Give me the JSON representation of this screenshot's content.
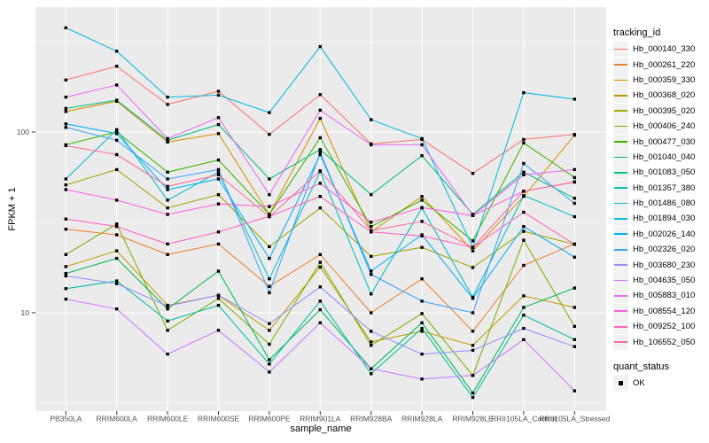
{
  "chart_data": {
    "type": "line",
    "title": "",
    "xlabel": "sample_name",
    "ylabel": "FPKM + 1",
    "y_scale": "log10",
    "y_major_ticks": [
      100,
      10
    ],
    "y_minor_gridlines": [
      316.2,
      31.62,
      3.162
    ],
    "ylim": [
      2.9,
      490
    ],
    "grid": true,
    "panel_background": "#EBEBEB",
    "gridline_color": "#FFFFFF",
    "tick_label_color": "#4D4D4D",
    "tick_mark_color": "#333333",
    "point_marker": "black-square",
    "point_color": "#000000",
    "legend_position": "right",
    "categories": [
      "PB350LA",
      "RRIM600LA",
      "RRIM600LE",
      "RRIM600SE",
      "RRIM600PE",
      "RRIM901LA",
      "RRIM928BA",
      "RRIM928LA",
      "RRIM928LE",
      "RRII105LA_Control",
      "RRII105LA_Stressed"
    ],
    "legend": {
      "title": "tracking_id"
    },
    "quant_legend": {
      "title": "quant_status",
      "items": [
        {
          "label": "OK",
          "marker": "black-square"
        }
      ]
    },
    "series": [
      {
        "name": "Hb_000140_330",
        "color": "#F8766D",
        "values": [
          194,
          231,
          142,
          168,
          97,
          161,
          86,
          91,
          59,
          91,
          97
        ]
      },
      {
        "name": "Hb_000261_220",
        "color": "#EA8331",
        "values": [
          29,
          27,
          21,
          24,
          14,
          21,
          10,
          15.4,
          7.9,
          18.3,
          24
        ]
      },
      {
        "name": "Hb_000359_330",
        "color": "#D89000",
        "values": [
          130,
          148,
          88,
          98,
          35,
          119,
          28,
          44,
          22,
          44,
          96
        ]
      },
      {
        "name": "Hb_000368_020",
        "color": "#C09B00",
        "values": [
          18,
          22,
          11,
          12.5,
          8,
          17.9,
          6.9,
          7.9,
          6.6,
          12.4,
          10.7
        ]
      },
      {
        "name": "Hb_000395_020",
        "color": "#A3A500",
        "values": [
          51,
          62,
          38,
          45,
          23.2,
          38,
          20.5,
          23,
          17.8,
          28.2,
          23.9
        ]
      },
      {
        "name": "Hb_000406_240",
        "color": "#7CAE00",
        "values": [
          21,
          31,
          8,
          12,
          6.7,
          19,
          6.6,
          9.9,
          4.5,
          25.2,
          8.4
        ]
      },
      {
        "name": "Hb_000477_030",
        "color": "#39B600",
        "values": [
          85,
          100,
          60,
          70,
          35,
          93,
          30,
          42,
          25,
          87,
          56
        ]
      },
      {
        "name": "Hb_001040_040",
        "color": "#00BB4E",
        "values": [
          16.5,
          20,
          10.5,
          17,
          5.5,
          10.4,
          4.9,
          8.8,
          3.6,
          10.7,
          13.7
        ]
      },
      {
        "name": "Hb_001083_050",
        "color": "#00BF7D",
        "values": [
          135,
          150,
          90,
          110,
          55,
          80,
          45,
          74,
          35,
          60,
          43
        ]
      },
      {
        "name": "Hb_001357_380",
        "color": "#00C1A3",
        "values": [
          13.6,
          15,
          9,
          11,
          5.2,
          11.6,
          4.6,
          8.2,
          3.4,
          9.7,
          7.1
        ]
      },
      {
        "name": "Hb_001486_080",
        "color": "#00BFC4",
        "values": [
          55,
          103,
          42,
          60,
          15.4,
          60.5,
          12.7,
          38,
          12.2,
          44.5,
          34
        ]
      },
      {
        "name": "Hb_001894_030",
        "color": "#00BAE0",
        "values": [
          377,
          280,
          156,
          160,
          128,
          297,
          117,
          92,
          23,
          165,
          152
        ]
      },
      {
        "name": "Hb_002026_140",
        "color": "#00B0F6",
        "values": [
          111,
          98,
          48,
          55,
          20,
          75,
          17,
          27,
          12,
          30,
          20.3
        ]
      },
      {
        "name": "Hb_002326_020",
        "color": "#35A2FF",
        "values": [
          106,
          90,
          55,
          62,
          12.9,
          77,
          16.3,
          11.6,
          10,
          67,
          40.3
        ]
      },
      {
        "name": "Hb_003680_230",
        "color": "#9590FF",
        "values": [
          16,
          14.5,
          10.9,
          12.5,
          8.7,
          13.9,
          7.9,
          5.9,
          6.2,
          8.2,
          6.5
        ]
      },
      {
        "name": "Hb_004635_050",
        "color": "#C77CFF",
        "values": [
          11.9,
          10.5,
          5.9,
          8,
          4.7,
          8.8,
          4.9,
          4.3,
          4.5,
          7.1,
          3.7
        ]
      },
      {
        "name": "Hb_005883_010",
        "color": "#E76BF3",
        "values": [
          156,
          182,
          92,
          120,
          45,
          132,
          85,
          85,
          34.5,
          58,
          62
        ]
      },
      {
        "name": "Hb_008554_120",
        "color": "#FA62DB",
        "values": [
          48,
          42,
          35,
          40,
          38.7,
          52,
          31.7,
          38.2,
          34.5,
          47,
          52.8
        ]
      },
      {
        "name": "Hb_009252_100",
        "color": "#FF62BC",
        "values": [
          33,
          30,
          24,
          28,
          34.2,
          44,
          28,
          26.6,
          23,
          36,
          23.9
        ]
      },
      {
        "name": "Hb_106552_050",
        "color": "#FF6A98",
        "values": [
          84,
          75,
          50,
          58,
          34,
          61,
          28.5,
          32,
          23,
          47,
          53
        ]
      }
    ]
  }
}
